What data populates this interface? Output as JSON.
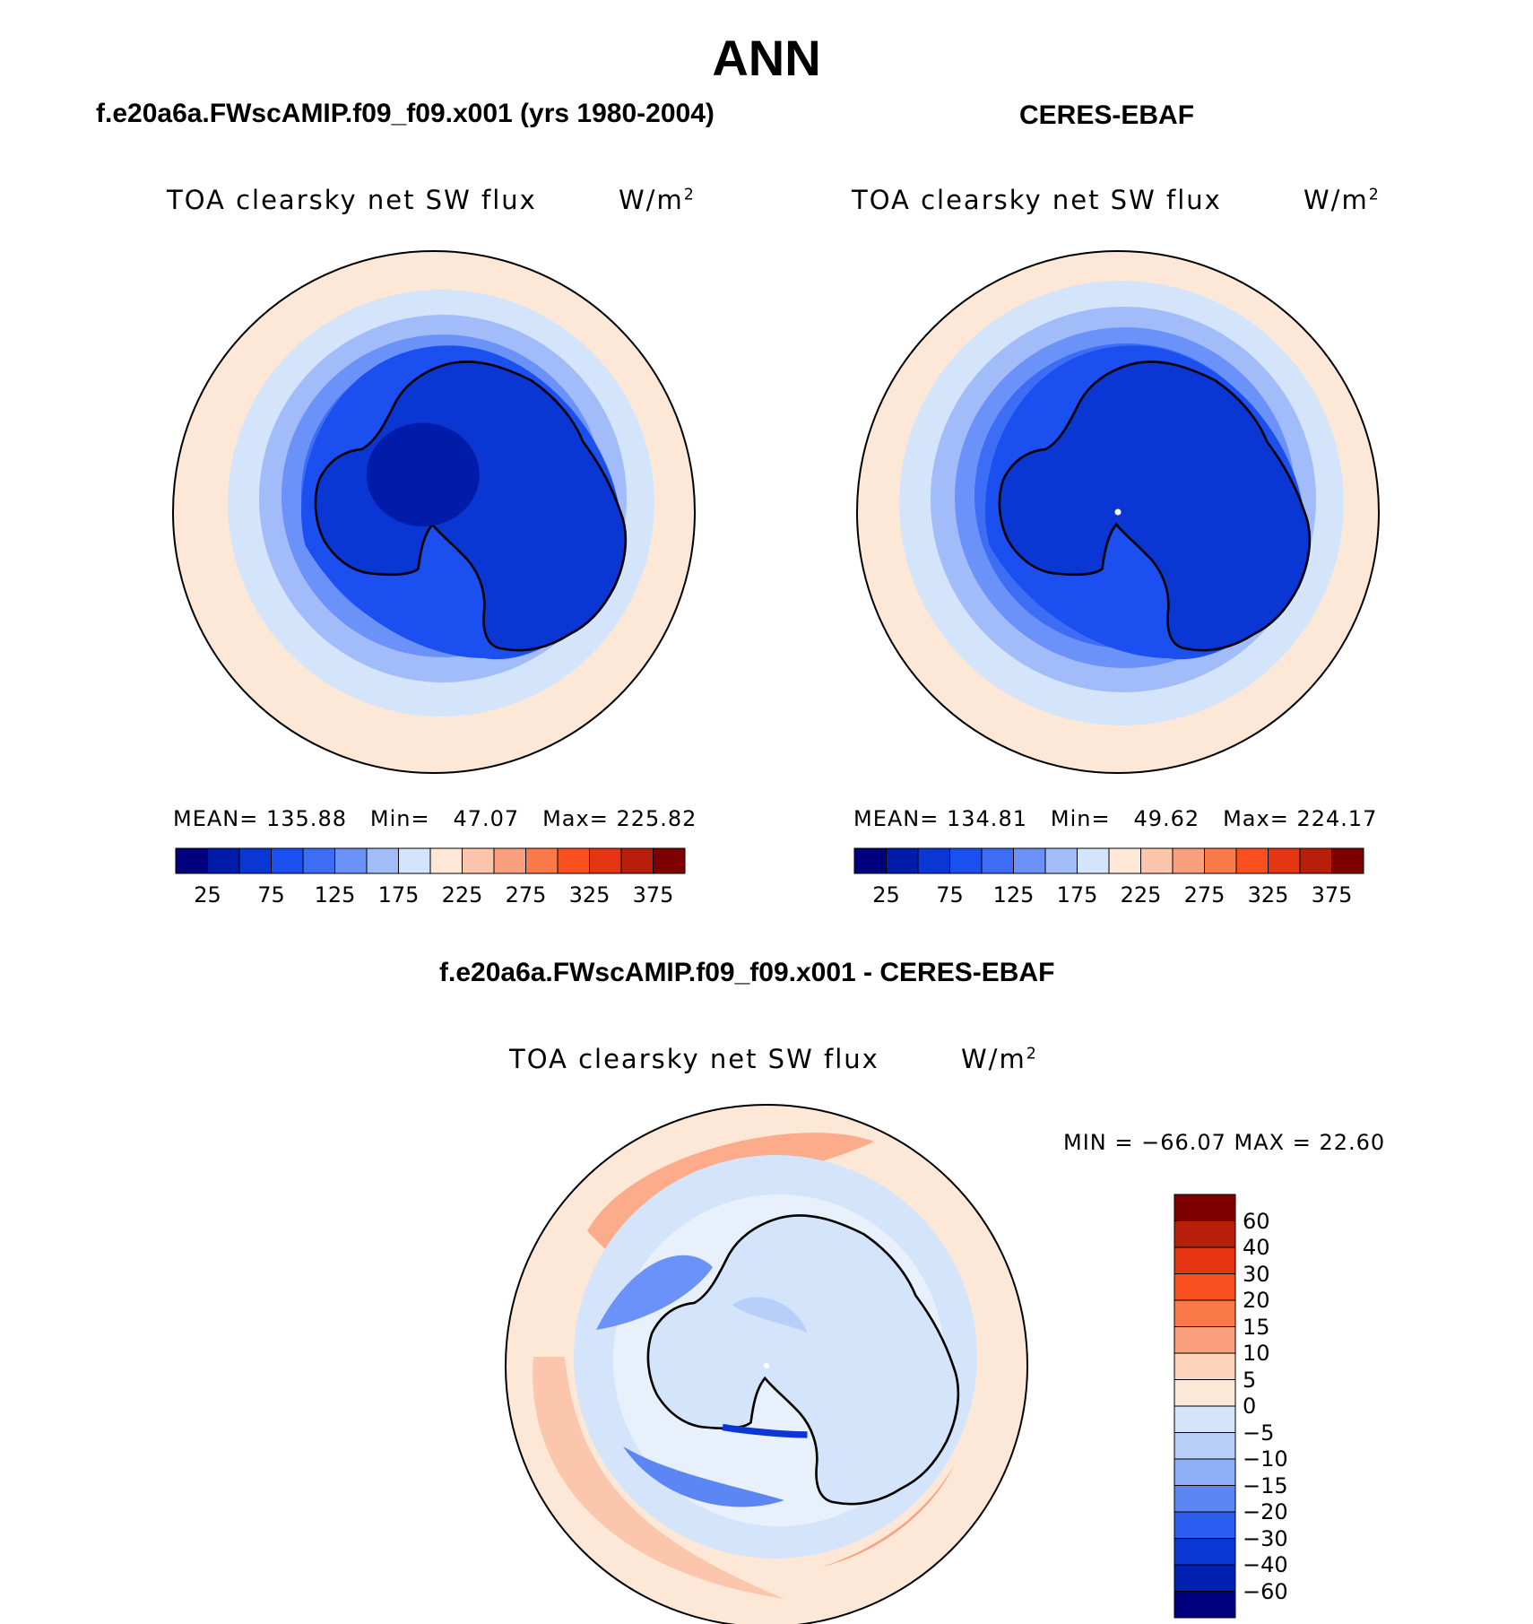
{
  "main_title": "ANN",
  "panels": {
    "model": {
      "case_title": "f.e20a6a.FWscAMIP.f09_f09.x001 (yrs 1980-2004)",
      "variable": "TOA clearsky net SW flux",
      "units_base": "W/m",
      "units_exp": "2",
      "mean_label": "MEAN=",
      "mean_value": "135.88",
      "min_label": "Min=",
      "min_value": "47.07",
      "max_label": "Max=",
      "max_value": "225.82"
    },
    "obs": {
      "case_title": "CERES-EBAF",
      "variable": "TOA clearsky net SW flux",
      "units_base": "W/m",
      "units_exp": "2",
      "mean_label": "MEAN=",
      "mean_value": "134.81",
      "min_label": "Min=",
      "min_value": "49.62",
      "max_label": "Max=",
      "max_value": "224.17"
    },
    "diff": {
      "case_title": "f.e20a6a.FWscAMIP.f09_f09.x001 - CERES-EBAF",
      "variable": "TOA clearsky net SW flux",
      "units_base": "W/m",
      "units_exp": "2",
      "minmax_text": "MIN = −66.07 MAX =  22.60"
    }
  },
  "field_colorbar": {
    "colors": [
      "#00007f",
      "#001ca8",
      "#0a37d4",
      "#1b4ff0",
      "#3d6df5",
      "#6a92f8",
      "#a2bcfa",
      "#d4e5fb",
      "#fde8d8",
      "#fcc6ac",
      "#fba07e",
      "#fb7a4a",
      "#fa5020",
      "#e53412",
      "#b81f0a",
      "#7f0000"
    ],
    "tick_labels": [
      "25",
      "75",
      "125",
      "175",
      "225",
      "275",
      "325",
      "375"
    ]
  },
  "diff_colorbar": {
    "colors": [
      "#7f0000",
      "#b81f0a",
      "#e53412",
      "#fa5020",
      "#fb7a4a",
      "#fba07e",
      "#fcd4bc",
      "#fde8d8",
      "#d4e5fb",
      "#b8cffa",
      "#8fb0f8",
      "#5c86f4",
      "#2b5ef0",
      "#0a37d4",
      "#0020b0",
      "#00007f"
    ],
    "tick_labels": [
      "60",
      "40",
      "30",
      "20",
      "15",
      "10",
      "5",
      "0",
      "−5",
      "−10",
      "−15",
      "−20",
      "−30",
      "−40",
      "−60"
    ]
  },
  "icons": {
    "coastline": "antarctica-coastline"
  }
}
